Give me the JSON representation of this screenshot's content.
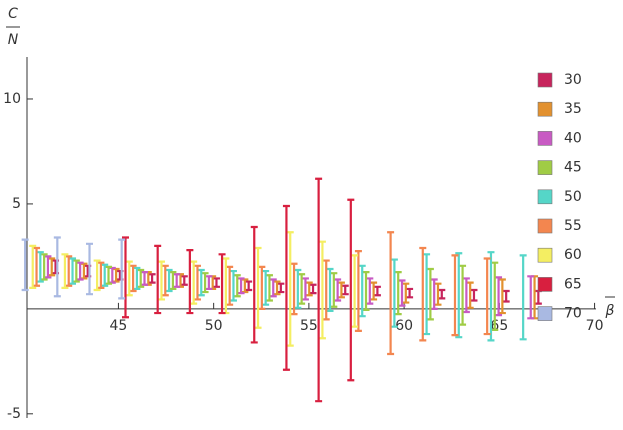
{
  "chart_data": {
    "type": "errorbar",
    "y_label_numerator": "C",
    "y_label_denominator": "N",
    "x_label": "β",
    "xlim": [
      40.2,
      70.6
    ],
    "ylim": [
      -5.2,
      12.0
    ],
    "xticks": [
      45,
      50,
      55,
      60,
      65,
      70
    ],
    "yticks": [
      -5,
      5,
      10
    ],
    "x": [
      40.9,
      42.59,
      44.28,
      45.97,
      47.66,
      49.35,
      51.04,
      52.73,
      54.42,
      56.11,
      57.8,
      59.49,
      61.18,
      62.87,
      64.56,
      66.25
    ],
    "series": [
      {
        "name": "30",
        "color": "#c7245c",
        "values": [
          2.0,
          1.8,
          1.6,
          1.45,
          1.35,
          1.25,
          1.1,
          1.0,
          0.95,
          0.9,
          0.85,
          0.75,
          0.7,
          0.65,
          0.6,
          0.55
        ],
        "errors": [
          0.3,
          0.25,
          0.2,
          0.2,
          0.2,
          0.2,
          0.2,
          0.2,
          0.2,
          0.2,
          0.2,
          0.2,
          0.2,
          0.25,
          0.25,
          0.3
        ]
      },
      {
        "name": "35",
        "color": "#e2912f",
        "values": [
          2.0,
          1.8,
          1.6,
          1.45,
          1.35,
          1.25,
          1.1,
          1.0,
          0.95,
          0.9,
          0.85,
          0.75,
          0.7,
          0.65,
          0.6,
          0.55
        ],
        "errors": [
          0.4,
          0.35,
          0.3,
          0.3,
          0.3,
          0.3,
          0.3,
          0.3,
          0.3,
          0.35,
          0.4,
          0.45,
          0.5,
          0.6,
          0.8,
          1.0
        ]
      },
      {
        "name": "40",
        "color": "#c85ac3",
        "values": [
          2.0,
          1.8,
          1.6,
          1.45,
          1.35,
          1.25,
          1.1,
          1.0,
          0.95,
          0.9,
          0.85,
          0.75,
          0.7,
          0.65,
          0.6,
          0.55
        ],
        "errors": [
          0.5,
          0.4,
          0.35,
          0.3,
          0.3,
          0.3,
          0.35,
          0.4,
          0.5,
          0.5,
          0.6,
          0.6,
          0.7,
          0.8,
          0.9,
          1.0
        ]
      },
      {
        "name": "45",
        "color": "#a0cc45",
        "values": [
          2.0,
          1.8,
          1.6,
          1.45,
          1.35,
          1.25,
          1.1,
          1.0,
          0.95,
          0.9,
          0.85,
          0.75,
          0.7,
          0.65,
          0.6,
          null
        ],
        "errors": [
          0.6,
          0.5,
          0.4,
          0.4,
          0.4,
          0.45,
          0.5,
          0.6,
          0.7,
          0.8,
          0.9,
          1.0,
          1.2,
          1.4,
          1.6,
          null
        ]
      },
      {
        "name": "50",
        "color": "#55d6c8",
        "values": [
          2.0,
          1.8,
          1.6,
          1.45,
          1.35,
          1.25,
          1.1,
          1.0,
          0.95,
          0.9,
          0.85,
          0.75,
          0.7,
          0.65,
          0.6,
          0.55
        ],
        "errors": [
          0.7,
          0.6,
          0.5,
          0.5,
          0.5,
          0.6,
          0.7,
          0.8,
          0.9,
          1.0,
          1.2,
          1.6,
          1.9,
          2.0,
          2.1,
          2.0
        ]
      },
      {
        "name": "55",
        "color": "#f3864f",
        "values": [
          2.0,
          1.8,
          1.6,
          1.45,
          1.35,
          1.25,
          1.1,
          1.0,
          0.95,
          0.9,
          0.85,
          0.75,
          0.7,
          0.65,
          0.6,
          null
        ],
        "errors": [
          0.9,
          0.7,
          0.6,
          0.6,
          0.7,
          0.8,
          0.9,
          1.0,
          1.2,
          1.4,
          1.9,
          2.9,
          2.2,
          1.9,
          1.8,
          null
        ]
      },
      {
        "name": "60",
        "color": "#f4ee62",
        "values": [
          2.0,
          1.8,
          1.6,
          1.45,
          1.35,
          1.25,
          1.1,
          1.0,
          0.95,
          0.9,
          0.85,
          null,
          null,
          null,
          null,
          null
        ],
        "errors": [
          1.0,
          0.8,
          0.7,
          0.8,
          0.9,
          1.0,
          1.3,
          1.9,
          2.7,
          2.3,
          1.7,
          null,
          null,
          null,
          null,
          null
        ]
      },
      {
        "name": "65",
        "color": "#d81f3f",
        "values": [
          null,
          null,
          null,
          1.5,
          1.4,
          1.3,
          1.2,
          1.15,
          1.0,
          0.9,
          0.9,
          null,
          null,
          null,
          null,
          null
        ],
        "errors": [
          null,
          null,
          null,
          1.9,
          1.6,
          1.5,
          1.4,
          2.75,
          3.9,
          5.3,
          4.3,
          null,
          null,
          null,
          null,
          null
        ]
      },
      {
        "name": "70",
        "color": "#a9b9e2",
        "values": [
          2.1,
          2.0,
          1.9,
          1.9,
          null,
          null,
          null,
          null,
          null,
          null,
          null,
          null,
          null,
          null,
          null,
          null
        ],
        "errors": [
          1.2,
          1.4,
          1.2,
          1.4,
          null,
          null,
          null,
          null,
          null,
          null,
          null,
          null,
          null,
          null,
          null,
          null
        ]
      }
    ]
  }
}
